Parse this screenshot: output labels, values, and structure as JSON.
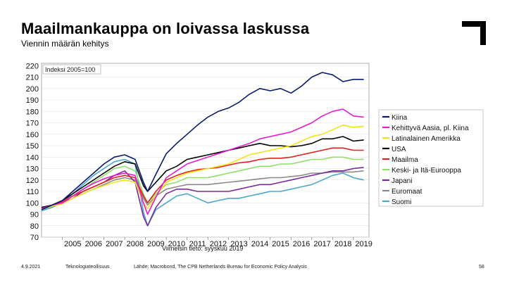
{
  "header": {
    "title": "Maailmankauppa on loivassa laskussa",
    "subtitle": "Viennin määrän kehitys"
  },
  "footer": {
    "date": "4.9.2021",
    "organization": "Teknologiateollisuus",
    "source": "Lähde: Macrobond, The CPB Netherlands Bureau for Economic Policy Analysis",
    "page": "58"
  },
  "colors": {
    "Kiina": "#0b1b6e",
    "Kehittyvä Aasia, pl. Kiina": "#e81ad2",
    "Latinalainen Amerikka": "#f2e318",
    "USA": "#000000",
    "Maailma": "#e3231c",
    "Keski- ja Itä-Eurooppa": "#8ee06a",
    "Japani": "#7a2aa0",
    "Euromaat": "#8a8a8a",
    "Suomi": "#4aa8c8"
  },
  "chart_data": {
    "type": "line",
    "title": "Maailmankauppa on loivassa laskussa",
    "subtitle": "Viennin määrän kehitys",
    "annotation": "Indeksi 2005=100",
    "xnote": "Viimeisin tieto: syyskuu 2019",
    "x_ticks": [
      "2005",
      "2006",
      "2007",
      "2008",
      "2009",
      "2010",
      "2011",
      "2012",
      "2013",
      "2014",
      "2015",
      "2016",
      "2017",
      "2018",
      "2019"
    ],
    "y_ticks": [
      70,
      80,
      90,
      100,
      110,
      120,
      130,
      140,
      150,
      160,
      170,
      180,
      190,
      200,
      210,
      220
    ],
    "xlim": [
      2004.0,
      2019.75
    ],
    "ylim": [
      70,
      222
    ],
    "x": [
      2004.0,
      2004.5,
      2005.0,
      2005.5,
      2006.0,
      2006.5,
      2007.0,
      2007.5,
      2008.0,
      2008.5,
      2008.9,
      2009.1,
      2009.5,
      2010.0,
      2010.5,
      2011.0,
      2011.5,
      2012.0,
      2012.5,
      2013.0,
      2013.5,
      2014.0,
      2014.5,
      2015.0,
      2015.5,
      2016.0,
      2016.5,
      2017.0,
      2017.5,
      2018.0,
      2018.5,
      2019.0,
      2019.5
    ],
    "legend_position": "right",
    "series": [
      {
        "name": "Kiina",
        "values": [
          94,
          98,
          102,
          110,
          118,
          126,
          134,
          140,
          142,
          138,
          118,
          110,
          125,
          143,
          152,
          160,
          168,
          175,
          180,
          183,
          188,
          195,
          200,
          198,
          200,
          196,
          202,
          210,
          214,
          212,
          206,
          208,
          208
        ]
      },
      {
        "name": "Kehittyvä Aasia, pl. Kiina",
        "values": [
          95,
          98,
          100,
          106,
          112,
          117,
          121,
          124,
          126,
          124,
          100,
          90,
          105,
          122,
          128,
          134,
          137,
          140,
          143,
          146,
          149,
          152,
          156,
          158,
          160,
          162,
          166,
          170,
          176,
          180,
          182,
          176,
          175
        ]
      },
      {
        "name": "Latinalainen Amerikka",
        "values": [
          95,
          97,
          99,
          104,
          108,
          112,
          115,
          118,
          120,
          118,
          100,
          95,
          106,
          118,
          122,
          126,
          128,
          130,
          132,
          134,
          138,
          142,
          144,
          146,
          148,
          150,
          154,
          158,
          160,
          164,
          168,
          166,
          167
        ]
      },
      {
        "name": "USA",
        "values": [
          96,
          98,
          102,
          108,
          114,
          120,
          126,
          132,
          136,
          134,
          115,
          110,
          118,
          128,
          132,
          138,
          140,
          142,
          144,
          146,
          148,
          150,
          152,
          150,
          150,
          149,
          150,
          152,
          156,
          156,
          158,
          154,
          155
        ]
      },
      {
        "name": "Maailma",
        "values": [
          96,
          98,
          101,
          106,
          110,
          114,
          118,
          122,
          124,
          122,
          106,
          100,
          110,
          120,
          124,
          127,
          129,
          130,
          131,
          133,
          135,
          136,
          138,
          139,
          139,
          140,
          142,
          144,
          146,
          148,
          148,
          146,
          146
        ]
      },
      {
        "name": "Keski- ja Itä-Eurooppa",
        "values": [
          94,
          97,
          101,
          106,
          112,
          118,
          124,
          130,
          132,
          128,
          108,
          100,
          108,
          116,
          118,
          122,
          122,
          122,
          124,
          126,
          128,
          130,
          132,
          132,
          134,
          134,
          136,
          138,
          138,
          140,
          140,
          138,
          138
        ]
      },
      {
        "name": "Japani",
        "values": [
          96,
          98,
          100,
          104,
          110,
          114,
          118,
          124,
          128,
          118,
          88,
          80,
          96,
          108,
          112,
          112,
          110,
          110,
          110,
          110,
          112,
          114,
          116,
          116,
          118,
          120,
          122,
          124,
          126,
          128,
          128,
          130,
          131
        ]
      },
      {
        "name": "Euromaat",
        "values": [
          95,
          97,
          100,
          104,
          108,
          112,
          116,
          120,
          122,
          120,
          104,
          98,
          106,
          112,
          114,
          116,
          116,
          116,
          117,
          118,
          119,
          120,
          121,
          122,
          122,
          123,
          124,
          126,
          126,
          127,
          127,
          127,
          128
        ]
      },
      {
        "name": "Suomi",
        "values": [
          93,
          96,
          100,
          108,
          116,
          124,
          130,
          136,
          138,
          134,
          92,
          80,
          94,
          100,
          106,
          108,
          104,
          100,
          102,
          104,
          104,
          106,
          108,
          110,
          110,
          112,
          114,
          116,
          120,
          124,
          126,
          122,
          120
        ]
      }
    ]
  }
}
